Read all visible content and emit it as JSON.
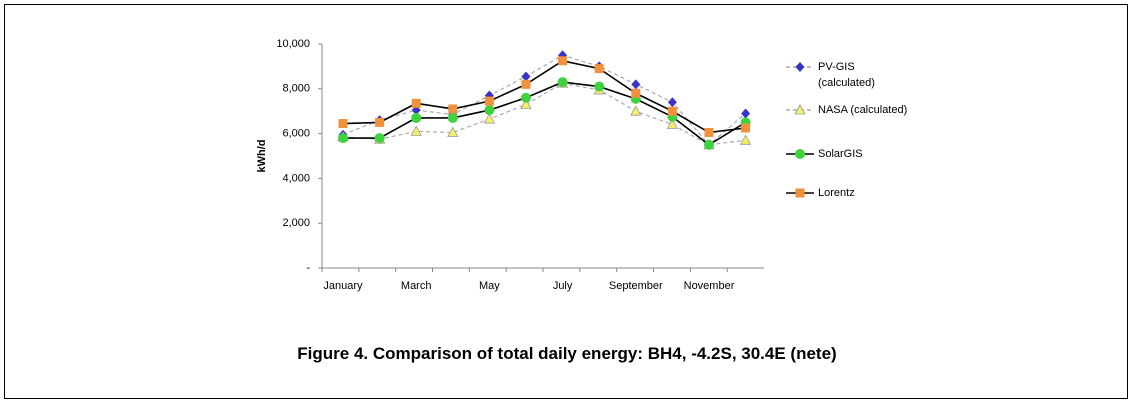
{
  "chart_data": {
    "type": "line",
    "y_label": "kWh/d",
    "categories": [
      "January",
      null,
      "March",
      null,
      "May",
      null,
      "July",
      null,
      "September",
      null,
      "November",
      null
    ],
    "ylim": [
      0,
      10000
    ],
    "yticks": [
      {
        "value": 0,
        "label": "-"
      },
      {
        "value": 2000,
        "label": "2,000"
      },
      {
        "value": 4000,
        "label": "4,000"
      },
      {
        "value": 6000,
        "label": "6,000"
      },
      {
        "value": 8000,
        "label": "8,000"
      },
      {
        "value": 10000,
        "label": "10,000"
      }
    ],
    "legend": "right",
    "series": [
      {
        "name": "PV-GIS (calculated)",
        "color": "#3b32c8",
        "line_color": "#aaaaaa",
        "dashed": true,
        "marker": "diamond",
        "values": [
          5950,
          6600,
          7050,
          6850,
          7700,
          8550,
          9500,
          9000,
          8200,
          7400,
          5500,
          6900
        ]
      },
      {
        "name": "NASA (calculated)",
        "color": "#f5f06a",
        "line_color": "#aaaaaa",
        "dashed": true,
        "marker": "triangle",
        "values": [
          5850,
          5750,
          6100,
          6050,
          6650,
          7300,
          8250,
          7950,
          7000,
          6400,
          5500,
          5700
        ]
      },
      {
        "name": "SolarGIS",
        "color": "#3fd23f",
        "line_color": "#000000",
        "dashed": false,
        "marker": "circle",
        "values": [
          5800,
          5800,
          6700,
          6700,
          7050,
          7600,
          8300,
          8100,
          7550,
          6750,
          5500,
          6500
        ]
      },
      {
        "name": "Lorentz",
        "color": "#f0913c",
        "line_color": "#000000",
        "dashed": false,
        "marker": "square",
        "values": [
          6450,
          6500,
          7350,
          7100,
          7450,
          8200,
          9250,
          8900,
          7800,
          7000,
          6050,
          6250
        ]
      }
    ]
  },
  "caption": "Figure 4. Comparison of total daily energy: BH4, -4.2S, 30.4E (nete)"
}
